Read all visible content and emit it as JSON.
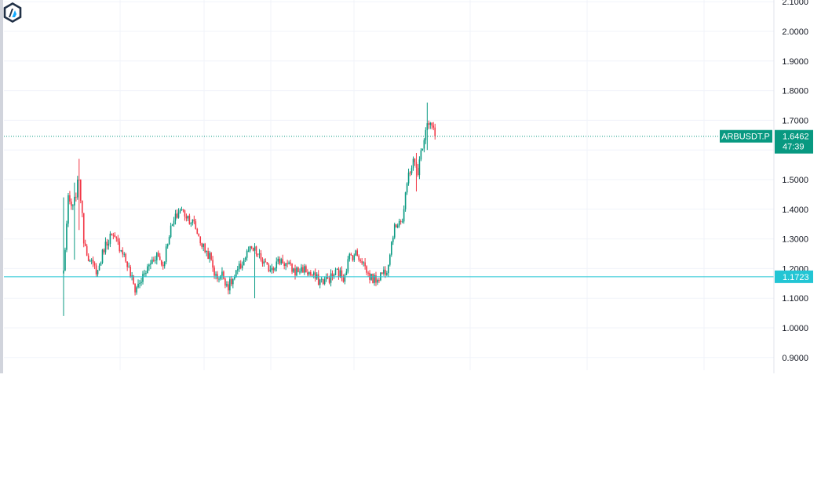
{
  "logo": {
    "icon": "arbitrum-logo-icon",
    "colors": {
      "outer": "#213147",
      "accent": "#12aaff",
      "white": "#ffffff"
    }
  },
  "symbol_tag": {
    "label": "ARBUSDT.P",
    "price": "1.6462",
    "countdown": "47:39",
    "color": "#089981"
  },
  "hline_tag": {
    "price": "1.1723",
    "color": "#22c5d4"
  },
  "colors": {
    "up": "#089981",
    "down": "#f23645",
    "grid": "#f0f3fa",
    "axis_text": "#131722"
  },
  "chart_data": {
    "type": "candlestick",
    "title": "",
    "xlabel": "",
    "ylabel": "",
    "ylim": [
      0.85,
      2.1
    ],
    "y_ticks": [
      "0.9000",
      "1.0000",
      "1.1000",
      "1.2000",
      "1.3000",
      "1.4000",
      "1.5000",
      "1.6000",
      "1.7000",
      "1.8000",
      "1.9000",
      "2.0000",
      "2.1000"
    ],
    "grid": true,
    "current_price": 1.6462,
    "horizontal_line": 1.1723,
    "anchors": [
      [
        0,
        1.19
      ],
      [
        3,
        1.43
      ],
      [
        6,
        1.4
      ],
      [
        10,
        1.51
      ],
      [
        13,
        1.3
      ],
      [
        17,
        1.22
      ],
      [
        22,
        1.19
      ],
      [
        26,
        1.27
      ],
      [
        30,
        1.31
      ],
      [
        34,
        1.29
      ],
      [
        38,
        1.26
      ],
      [
        43,
        1.18
      ],
      [
        46,
        1.13
      ],
      [
        51,
        1.17
      ],
      [
        56,
        1.22
      ],
      [
        60,
        1.25
      ],
      [
        64,
        1.21
      ],
      [
        68,
        1.32
      ],
      [
        72,
        1.37
      ],
      [
        75,
        1.4
      ],
      [
        79,
        1.38
      ],
      [
        84,
        1.35
      ],
      [
        89,
        1.28
      ],
      [
        94,
        1.24
      ],
      [
        98,
        1.17
      ],
      [
        102,
        1.18
      ],
      [
        106,
        1.14
      ],
      [
        110,
        1.17
      ],
      [
        115,
        1.22
      ],
      [
        119,
        1.26
      ],
      [
        123,
        1.26
      ],
      [
        127,
        1.23
      ],
      [
        131,
        1.2
      ],
      [
        135,
        1.21
      ],
      [
        140,
        1.23
      ],
      [
        144,
        1.21
      ],
      [
        149,
        1.19
      ],
      [
        154,
        1.2
      ],
      [
        159,
        1.18
      ],
      [
        164,
        1.16
      ],
      [
        168,
        1.16
      ],
      [
        172,
        1.17
      ],
      [
        176,
        1.19
      ],
      [
        180,
        1.17
      ],
      [
        184,
        1.24
      ],
      [
        188,
        1.25
      ],
      [
        192,
        1.23
      ],
      [
        196,
        1.18
      ],
      [
        200,
        1.16
      ],
      [
        204,
        1.18
      ],
      [
        208,
        1.2
      ],
      [
        212,
        1.32
      ],
      [
        216,
        1.37
      ],
      [
        218,
        1.36
      ],
      [
        222,
        1.52
      ],
      [
        225,
        1.56
      ],
      [
        228,
        1.53
      ],
      [
        231,
        1.62
      ],
      [
        234,
        1.7
      ],
      [
        237,
        1.68
      ],
      [
        239,
        1.6462
      ]
    ],
    "spikes": [
      [
        0,
        1.44,
        1.04
      ],
      [
        7,
        1.49,
        1.23
      ],
      [
        10,
        1.57,
        1.33
      ],
      [
        123,
        1.28,
        1.1
      ],
      [
        227,
        1.59,
        1.46
      ],
      [
        234,
        1.76,
        1.6
      ]
    ]
  }
}
